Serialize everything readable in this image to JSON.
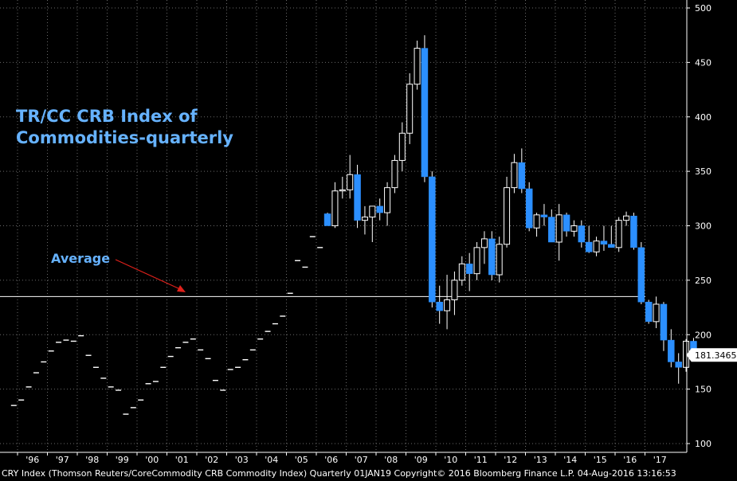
{
  "chart_data": {
    "type": "candlestick",
    "title_lines": [
      "TR/CC CRB Index of",
      "Commodities-quarterly"
    ],
    "annotation": "Average",
    "average_value": 235,
    "ylim": [
      95,
      505
    ],
    "y_ticks": [
      100,
      150,
      200,
      250,
      300,
      350,
      400,
      450,
      500
    ],
    "last_value_label": "181.3465",
    "last_value": 181.35,
    "x_tick_labels": [
      "'96",
      "'97",
      "'98",
      "'99",
      "'00",
      "'01",
      "'02",
      "'03",
      "'04",
      "'05",
      "'06",
      "'07",
      "'08",
      "'09",
      "'10",
      "'11",
      "'12",
      "'13",
      "'14",
      "'15",
      "'16",
      "'17"
    ],
    "quarters_flat": [
      {
        "q": -1,
        "v": 135
      },
      {
        "q": 0,
        "v": 140
      },
      {
        "q": 1,
        "v": 152
      },
      {
        "q": 2,
        "v": 165
      },
      {
        "q": 3,
        "v": 175
      },
      {
        "q": 4,
        "v": 185
      },
      {
        "q": 5,
        "v": 193
      },
      {
        "q": 6,
        "v": 195
      },
      {
        "q": 7,
        "v": 194
      },
      {
        "q": 8,
        "v": 199
      },
      {
        "q": 9,
        "v": 181
      },
      {
        "q": 10,
        "v": 170
      },
      {
        "q": 11,
        "v": 160
      },
      {
        "q": 12,
        "v": 152
      },
      {
        "q": 13,
        "v": 149
      },
      {
        "q": 14,
        "v": 127
      },
      {
        "q": 15,
        "v": 133
      },
      {
        "q": 16,
        "v": 140
      },
      {
        "q": 17,
        "v": 155
      },
      {
        "q": 18,
        "v": 157
      },
      {
        "q": 19,
        "v": 170
      },
      {
        "q": 20,
        "v": 180
      },
      {
        "q": 21,
        "v": 188
      },
      {
        "q": 22,
        "v": 193
      },
      {
        "q": 23,
        "v": 196
      },
      {
        "q": 24,
        "v": 186
      },
      {
        "q": 25,
        "v": 178
      },
      {
        "q": 26,
        "v": 158
      },
      {
        "q": 27,
        "v": 149
      },
      {
        "q": 28,
        "v": 168
      },
      {
        "q": 29,
        "v": 170
      },
      {
        "q": 30,
        "v": 177
      },
      {
        "q": 31,
        "v": 186
      },
      {
        "q": 32,
        "v": 196
      },
      {
        "q": 33,
        "v": 203
      },
      {
        "q": 34,
        "v": 210
      },
      {
        "q": 35,
        "v": 217
      },
      {
        "q": 36,
        "v": 238
      },
      {
        "q": 37,
        "v": 268
      },
      {
        "q": 38,
        "v": 262
      },
      {
        "q": 39,
        "v": 290
      },
      {
        "q": 40,
        "v": 280
      }
    ],
    "candles": [
      {
        "q": 41,
        "o": 311,
        "h": 312,
        "l": 300,
        "c": 300
      },
      {
        "q": 42,
        "o": 300,
        "h": 340,
        "l": 298,
        "c": 332
      },
      {
        "q": 43,
        "o": 332,
        "h": 345,
        "l": 325,
        "c": 333
      },
      {
        "q": 44,
        "o": 333,
        "h": 365,
        "l": 325,
        "c": 347
      },
      {
        "q": 45,
        "o": 347,
        "h": 356,
        "l": 298,
        "c": 305
      },
      {
        "q": 46,
        "o": 305,
        "h": 318,
        "l": 292,
        "c": 308
      },
      {
        "q": 47,
        "o": 308,
        "h": 318,
        "l": 285,
        "c": 318
      },
      {
        "q": 48,
        "o": 318,
        "h": 325,
        "l": 305,
        "c": 312
      },
      {
        "q": 49,
        "o": 312,
        "h": 340,
        "l": 300,
        "c": 335
      },
      {
        "q": 50,
        "o": 335,
        "h": 365,
        "l": 330,
        "c": 360
      },
      {
        "q": 51,
        "o": 360,
        "h": 395,
        "l": 350,
        "c": 385
      },
      {
        "q": 52,
        "o": 385,
        "h": 440,
        "l": 375,
        "c": 430
      },
      {
        "q": 53,
        "o": 430,
        "h": 470,
        "l": 425,
        "c": 463
      },
      {
        "q": 54,
        "o": 463,
        "h": 475,
        "l": 340,
        "c": 345
      },
      {
        "q": 55,
        "o": 345,
        "h": 350,
        "l": 225,
        "c": 230
      },
      {
        "q": 56,
        "o": 230,
        "h": 245,
        "l": 210,
        "c": 222
      },
      {
        "q": 57,
        "o": 222,
        "h": 255,
        "l": 205,
        "c": 232
      },
      {
        "q": 58,
        "o": 232,
        "h": 258,
        "l": 218,
        "c": 250
      },
      {
        "q": 59,
        "o": 250,
        "h": 272,
        "l": 245,
        "c": 265
      },
      {
        "q": 60,
        "o": 265,
        "h": 275,
        "l": 240,
        "c": 256
      },
      {
        "q": 61,
        "o": 256,
        "h": 285,
        "l": 250,
        "c": 280
      },
      {
        "q": 62,
        "o": 280,
        "h": 295,
        "l": 265,
        "c": 288
      },
      {
        "q": 63,
        "o": 288,
        "h": 295,
        "l": 250,
        "c": 255
      },
      {
        "q": 64,
        "o": 255,
        "h": 290,
        "l": 248,
        "c": 283
      },
      {
        "q": 65,
        "o": 283,
        "h": 345,
        "l": 280,
        "c": 335
      },
      {
        "q": 66,
        "o": 335,
        "h": 366,
        "l": 330,
        "c": 358
      },
      {
        "q": 67,
        "o": 358,
        "h": 371,
        "l": 330,
        "c": 334
      },
      {
        "q": 68,
        "o": 334,
        "h": 340,
        "l": 295,
        "c": 298
      },
      {
        "q": 69,
        "o": 298,
        "h": 312,
        "l": 290,
        "c": 310
      },
      {
        "q": 70,
        "o": 310,
        "h": 320,
        "l": 300,
        "c": 308
      },
      {
        "q": 71,
        "o": 308,
        "h": 315,
        "l": 285,
        "c": 285
      },
      {
        "q": 72,
        "o": 285,
        "h": 320,
        "l": 268,
        "c": 310
      },
      {
        "q": 73,
        "o": 310,
        "h": 312,
        "l": 290,
        "c": 295
      },
      {
        "q": 74,
        "o": 295,
        "h": 305,
        "l": 290,
        "c": 300
      },
      {
        "q": 75,
        "o": 300,
        "h": 305,
        "l": 280,
        "c": 285
      },
      {
        "q": 76,
        "o": 285,
        "h": 300,
        "l": 275,
        "c": 276
      },
      {
        "q": 77,
        "o": 276,
        "h": 290,
        "l": 272,
        "c": 286
      },
      {
        "q": 78,
        "o": 286,
        "h": 300,
        "l": 277,
        "c": 283
      },
      {
        "q": 79,
        "o": 283,
        "h": 300,
        "l": 280,
        "c": 280
      },
      {
        "q": 80,
        "o": 280,
        "h": 308,
        "l": 276,
        "c": 305
      },
      {
        "q": 81,
        "o": 305,
        "h": 313,
        "l": 300,
        "c": 309
      },
      {
        "q": 82,
        "o": 309,
        "h": 312,
        "l": 278,
        "c": 280
      },
      {
        "q": 83,
        "o": 280,
        "h": 285,
        "l": 228,
        "c": 230
      },
      {
        "q": 84,
        "o": 230,
        "h": 232,
        "l": 210,
        "c": 212
      },
      {
        "q": 85,
        "o": 212,
        "h": 235,
        "l": 206,
        "c": 228
      },
      {
        "q": 86,
        "o": 228,
        "h": 230,
        "l": 185,
        "c": 195
      },
      {
        "q": 87,
        "o": 195,
        "h": 205,
        "l": 170,
        "c": 175
      },
      {
        "q": 88,
        "o": 175,
        "h": 183,
        "l": 155,
        "c": 170
      },
      {
        "q": 89,
        "o": 170,
        "h": 196,
        "l": 166,
        "c": 194
      },
      {
        "q": 90,
        "o": 194,
        "h": 197,
        "l": 180,
        "c": 181.35
      }
    ]
  },
  "footer": {
    "text": "CRY Index (Thomson Reuters/CoreCommodity CRB Commodity Index)  Quarterly 01JAN19  Copyright© 2016 Bloomberg Finance L.P.  04-Aug-2016 13:16:53"
  },
  "colors": {
    "background": "#000000",
    "up_candle": "#ffffff",
    "down_candle": "#2b8fff",
    "axis_text": "#ffffff",
    "title": "#66b2ff",
    "grid": "#6a6a6a",
    "arrow": "#e0211b"
  }
}
